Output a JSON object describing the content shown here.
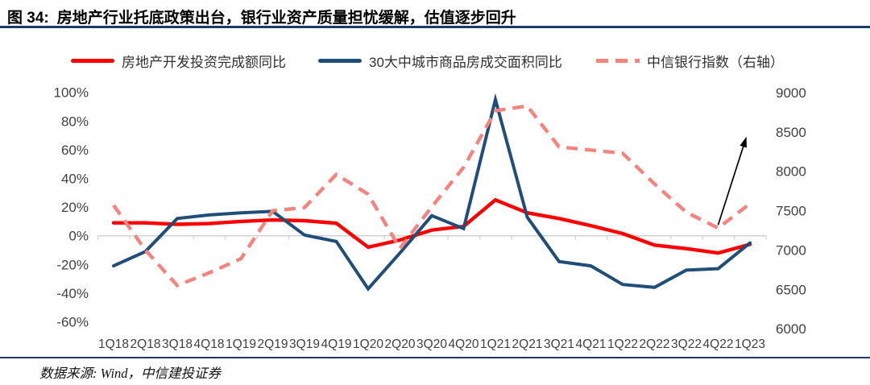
{
  "figure": {
    "label": "图 34:",
    "title": "房地产行业托底政策出台，银行业资产质量担忧缓解，估值逐步回升",
    "source": "数据来源: Wind，中信建投证券"
  },
  "colors": {
    "divider_navy": "#1f3864",
    "investment_red": "#ff0000",
    "transactions_blue": "#1f4e79",
    "bank_index_pink": "#f5837e",
    "axis_line_gray": "#cfcfcf",
    "axis_text_gray": "#3f3f3f",
    "arrow_black": "#000000"
  },
  "chart_data": {
    "type": "line",
    "categories": [
      "1Q18",
      "2Q18",
      "3Q18",
      "4Q18",
      "1Q19",
      "2Q19",
      "3Q19",
      "4Q19",
      "1Q20",
      "2Q20",
      "3Q20",
      "4Q20",
      "1Q21",
      "2Q21",
      "3Q21",
      "4Q21",
      "1Q22",
      "2Q22",
      "3Q22",
      "4Q22",
      "1Q23"
    ],
    "series": [
      {
        "name": "房地产开发投资完成额同比",
        "axis": "left",
        "unit": "%",
        "line_style": "solid",
        "color": "#ff0000",
        "values": [
          9,
          9,
          8,
          8.5,
          10,
          11,
          10.5,
          8.7,
          -8,
          -3,
          4,
          6.5,
          25,
          16,
          12,
          7,
          1.5,
          -6.5,
          -9,
          -12,
          -6
        ]
      },
      {
        "name": "30大中城市商品房成交面积同比",
        "axis": "left",
        "unit": "%",
        "line_style": "solid",
        "color": "#1f4e79",
        "values": [
          -21,
          -11,
          12,
          14.5,
          16,
          17,
          0.5,
          -4,
          -37,
          -12,
          14,
          5,
          95,
          13,
          -18,
          -21,
          -34,
          -36,
          -24,
          -23,
          -5
        ]
      },
      {
        "name": "中信银行指数（右轴）",
        "axis": "right",
        "unit": "index",
        "line_style": "dashed",
        "color": "#f5837e",
        "values": [
          7570,
          7000,
          6550,
          6710,
          6890,
          7500,
          7540,
          7960,
          7710,
          7020,
          7550,
          8050,
          8770,
          8830,
          8310,
          8270,
          8230,
          7840,
          7480,
          7280,
          7590
        ]
      }
    ],
    "left_axis": {
      "min": -60,
      "max": 100,
      "ticks": [
        {
          "label": "100%",
          "value": 100
        },
        {
          "label": "80%",
          "value": 80
        },
        {
          "label": "60%",
          "value": 60
        },
        {
          "label": "40%",
          "value": 40
        },
        {
          "label": "20%",
          "value": 20
        },
        {
          "label": "0%",
          "value": 0
        },
        {
          "label": "-20%",
          "value": -20
        },
        {
          "label": "-40%",
          "value": -40
        },
        {
          "label": "-60%",
          "value": -60
        }
      ]
    },
    "right_axis": {
      "min": 6000,
      "max": 9000,
      "ticks": [
        {
          "label": "9000",
          "value": 9000
        },
        {
          "label": "8500",
          "value": 8500
        },
        {
          "label": "8000",
          "value": 8000
        },
        {
          "label": "7500",
          "value": 7500
        },
        {
          "label": "7000",
          "value": 7000
        },
        {
          "label": "6500",
          "value": 6500
        },
        {
          "label": "6000",
          "value": 6000
        }
      ]
    },
    "grid": "zero-line-only",
    "legend_position": "top",
    "annotation_arrow": {
      "meaning": "估值逐步回升",
      "color": "#000000",
      "from": {
        "category": "4Q22",
        "right_value": 7320
      },
      "to": {
        "category": "1Q23",
        "right_value": 8420
      }
    }
  }
}
